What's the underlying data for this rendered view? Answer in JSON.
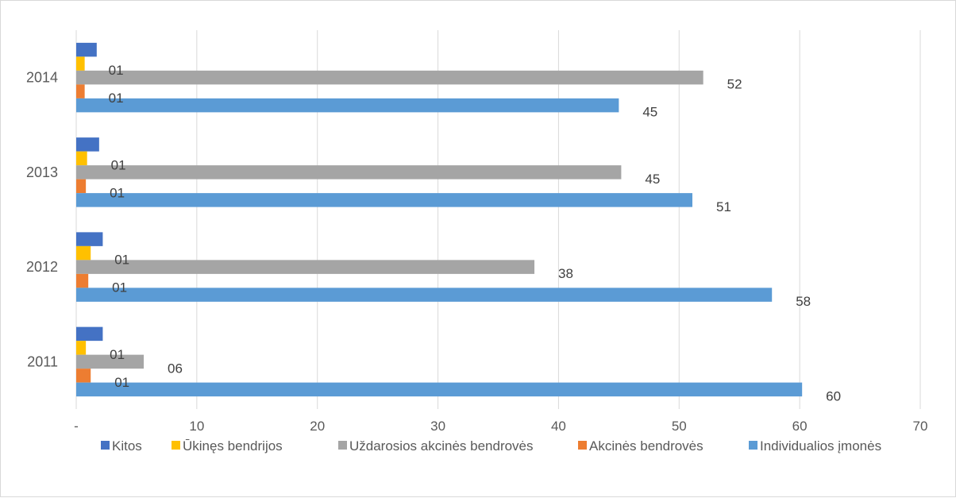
{
  "chart_data": {
    "type": "bar",
    "orientation": "horizontal",
    "categories": [
      "2011",
      "2012",
      "2013",
      "2014"
    ],
    "x_ticks": [
      "-",
      "10",
      "20",
      "30",
      "40",
      "50",
      "60",
      "70"
    ],
    "xlim": [
      0,
      70
    ],
    "grid": true,
    "legend_position": "bottom",
    "series": [
      {
        "name": "Kitos",
        "color": "#4472c4",
        "values": [
          2.2,
          2.2,
          1.9,
          1.7
        ],
        "labels": [
          "",
          "",
          "",
          ""
        ]
      },
      {
        "name": "Ūkinęs bendrijos",
        "color": "#ffc000",
        "values": [
          0.8,
          1.2,
          0.9,
          0.7
        ],
        "labels": [
          "01",
          "01",
          "01",
          "01"
        ]
      },
      {
        "name": "Uždarosios akcinės bendrovės",
        "color": "#a5a5a5",
        "values": [
          5.6,
          38.0,
          45.2,
          52.0
        ],
        "labels": [
          "06",
          "38",
          "45",
          "52"
        ]
      },
      {
        "name": "Akcinės bendrovės",
        "color": "#ed7d31",
        "values": [
          1.2,
          1.0,
          0.8,
          0.7
        ],
        "labels": [
          "01",
          "01",
          "01",
          "01"
        ]
      },
      {
        "name": "Individualios įmonės",
        "color": "#5b9bd5",
        "values": [
          60.2,
          57.7,
          51.1,
          45.0
        ],
        "labels": [
          "60",
          "58",
          "51",
          "45"
        ]
      }
    ]
  }
}
